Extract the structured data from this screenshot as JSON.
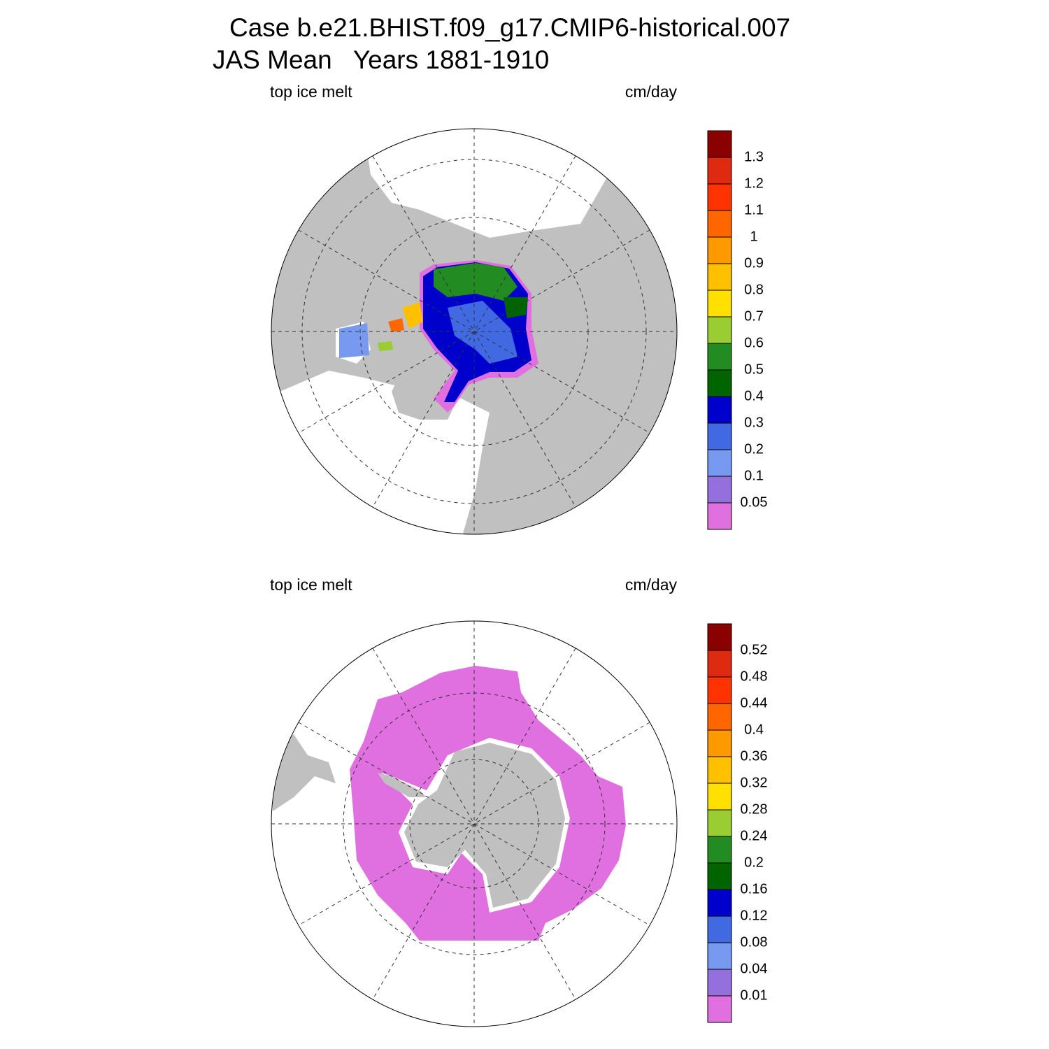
{
  "title": [
    "Case b.e21.BHIST.f09_g17.CMIP6-historical.007",
    "JAS Mean   Years 1881-1910"
  ],
  "panels": [
    {
      "left_label": "top ice melt",
      "right_label": "cm/day",
      "colorbar": {
        "colors": [
          "#e070e0",
          "#9370db",
          "#7799f0",
          "#4169e1",
          "#0000cd",
          "#006400",
          "#228b22",
          "#9acd32",
          "#ffe000",
          "#ffc000",
          "#ff9900",
          "#ff6600",
          "#ff3300",
          "#dd2a10",
          "#8b0000"
        ],
        "labels": [
          "0.05",
          "0.1",
          "0.2",
          "0.3",
          "0.4",
          "0.5",
          "0.6",
          "0.7",
          "0.8",
          "0.9",
          "1",
          "1.1",
          "1.2",
          "1.3"
        ]
      }
    },
    {
      "left_label": "top ice melt",
      "right_label": "cm/day",
      "colorbar": {
        "colors": [
          "#e070e0",
          "#9370db",
          "#7799f0",
          "#4169e1",
          "#0000cd",
          "#006400",
          "#228b22",
          "#9acd32",
          "#ffe000",
          "#ffc000",
          "#ff9900",
          "#ff6600",
          "#ff3300",
          "#dd2a10",
          "#8b0000"
        ],
        "labels": [
          "0.01",
          "0.04",
          "0.08",
          "0.12",
          "0.16",
          "0.2",
          "0.24",
          "0.28",
          "0.32",
          "0.36",
          "0.4",
          "0.44",
          "0.48",
          "0.52"
        ]
      }
    }
  ]
}
